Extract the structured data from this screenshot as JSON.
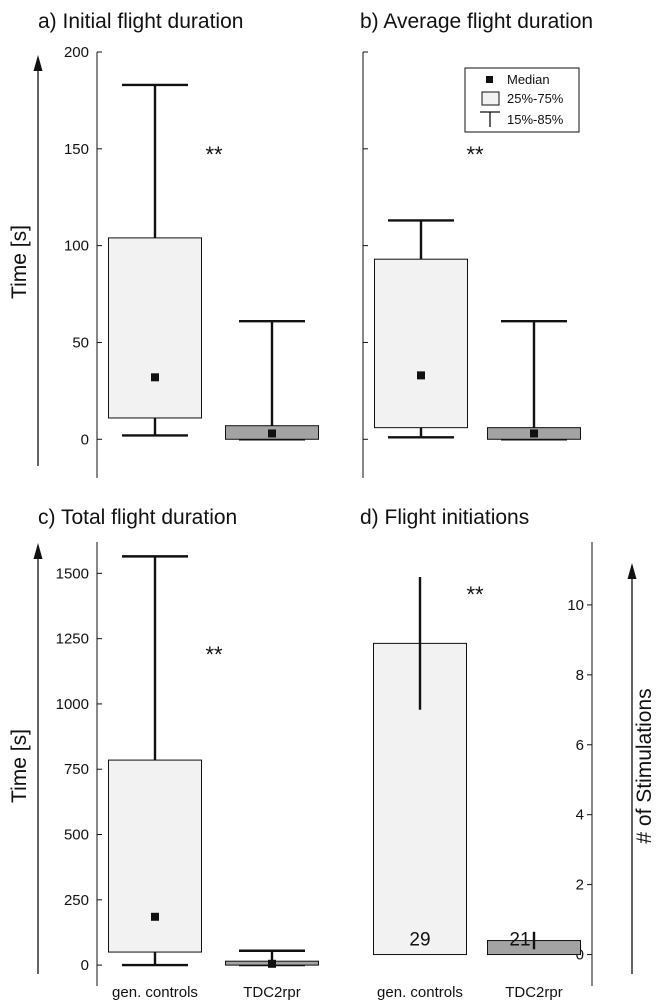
{
  "colors": {
    "controls": "#f2f2f2",
    "tdc": "#a3a3a3",
    "stroke": "#111111",
    "background": "#ffffff"
  },
  "legend": {
    "median": "Median",
    "box": "25%-75%",
    "whisker": "15%-85%"
  },
  "chart_data": [
    {
      "id": "a",
      "type": "box",
      "title": "a) Initial flight duration",
      "ylabel": "Time [s]",
      "ylim": [
        -20,
        200
      ],
      "yticks": [
        0,
        50,
        100,
        150,
        200
      ],
      "categories": [
        "gen. controls",
        "TDC2rpr"
      ],
      "series": [
        {
          "p15": 2,
          "q1": 11,
          "median": 32,
          "q3": 104,
          "p85": 183
        },
        {
          "p15": 0,
          "q1": 0,
          "median": 3,
          "q3": 7,
          "p85": 61
        }
      ],
      "annotation": "**",
      "legend": "top-right"
    },
    {
      "id": "b",
      "type": "box",
      "title": "b) Average flight duration",
      "ylabel": "",
      "ylim": [
        -20,
        200
      ],
      "yticks": [
        0,
        50,
        100,
        150,
        200
      ],
      "categories": [
        "gen. controls",
        "TDC2rpr"
      ],
      "series": [
        {
          "p15": 1,
          "q1": 6,
          "median": 33,
          "q3": 93,
          "p85": 113
        },
        {
          "p15": 0,
          "q1": 0,
          "median": 3,
          "q3": 6,
          "p85": 61
        }
      ],
      "annotation": "**"
    },
    {
      "id": "c",
      "type": "box",
      "title": "c) Total flight duration",
      "ylabel": "Time [s]",
      "ylim": [
        -80,
        1620
      ],
      "yticks": [
        0,
        250,
        500,
        750,
        1000,
        1250,
        1500
      ],
      "categories": [
        "gen. controls",
        "TDC2rpr"
      ],
      "series": [
        {
          "p15": 0,
          "q1": 50,
          "median": 185,
          "q3": 785,
          "p85": 1565
        },
        {
          "p15": 0,
          "q1": 0,
          "median": 5,
          "q3": 15,
          "p85": 55
        }
      ],
      "annotation": "**"
    },
    {
      "id": "d",
      "type": "bar",
      "title": "d) Flight initiations",
      "ylabel": "# of Stimulations",
      "ylim": [
        -0.9,
        11.8
      ],
      "yticks": [
        0,
        2,
        4,
        6,
        8,
        10
      ],
      "categories": [
        "gen. controls",
        "TDC2rpr"
      ],
      "values": [
        8.9,
        0.4
      ],
      "error_low": [
        7.0,
        0.15
      ],
      "error_high": [
        10.8,
        0.65
      ],
      "bar_labels": [
        "29",
        "21"
      ],
      "annotation": "**"
    }
  ]
}
